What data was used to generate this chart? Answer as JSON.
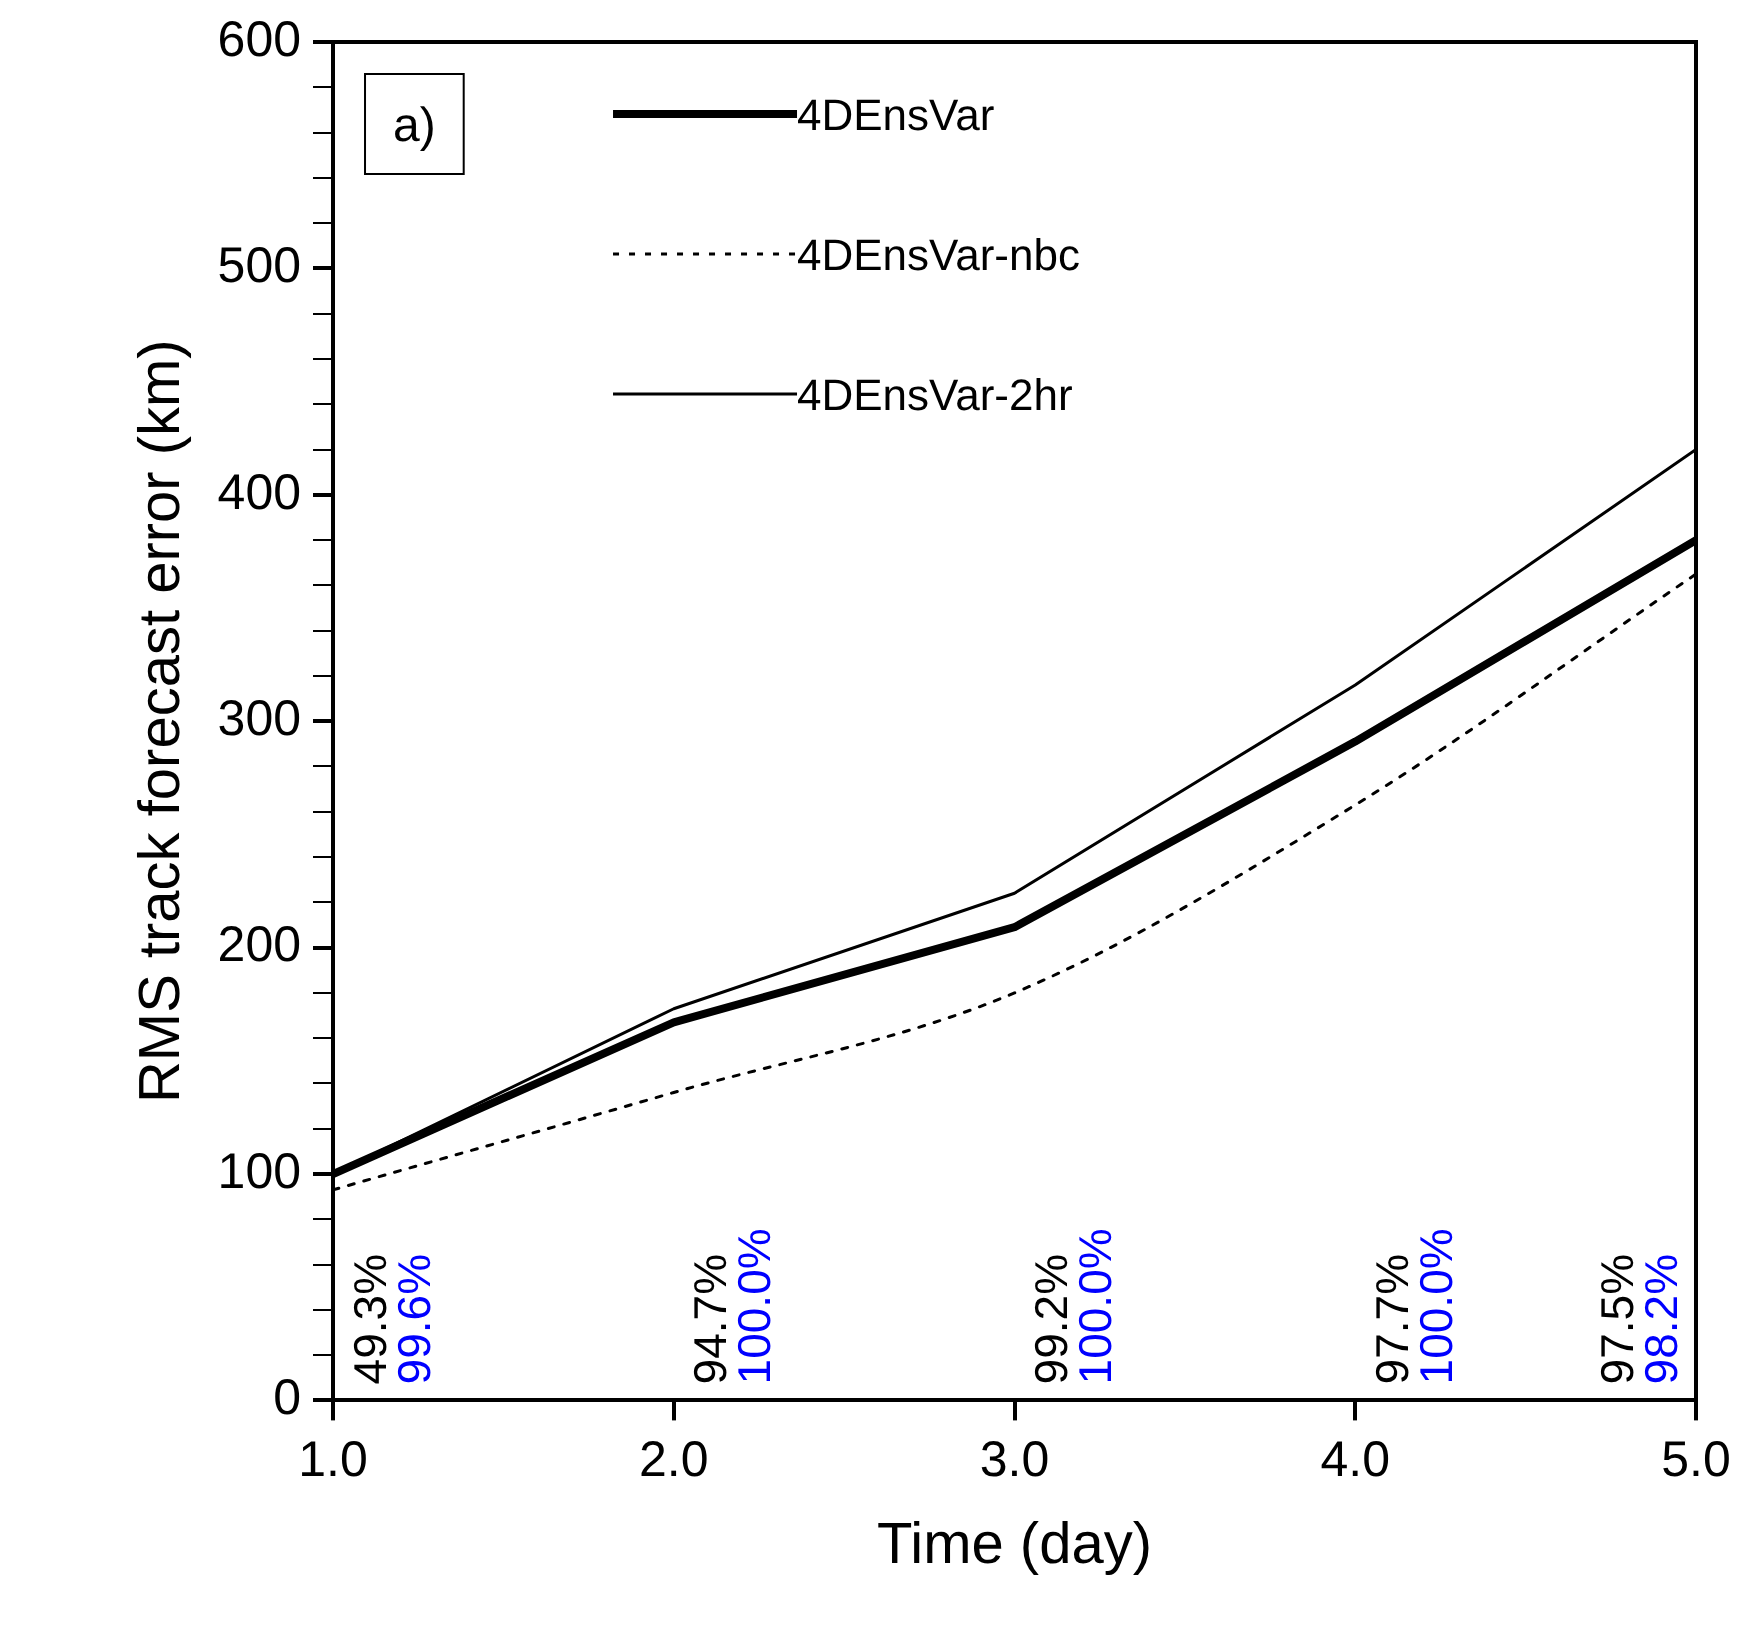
{
  "chart_data": {
    "type": "line",
    "xlabel": "Time (day)",
    "ylabel": "RMS track forecast error (km)",
    "x": [
      1,
      2,
      3,
      4,
      5
    ],
    "series": [
      {
        "name": "4DEnsVar",
        "color": "#000000",
        "values": [
          100,
          167,
          209,
          291,
          380
        ],
        "line_style": "solid"
      },
      {
        "name": "4DEnsVar-nbc",
        "color": "#000000",
        "values": [
          93,
          136,
          180,
          263,
          365
        ],
        "line_style": "dotted"
      },
      {
        "name": "4DEnsVar-2hr",
        "color": "#000000",
        "values": [
          100,
          173,
          224,
          316,
          420
        ],
        "line_style": "solid"
      }
    ],
    "xlim": [
      1,
      5
    ],
    "xticks": [
      {
        "value": 1,
        "label": "1.0"
      },
      {
        "value": 2,
        "label": "2.0"
      },
      {
        "value": 3,
        "label": "3.0"
      },
      {
        "value": 4,
        "label": "4.0"
      },
      {
        "value": 5,
        "label": "5.0"
      }
    ],
    "ylim": [
      0,
      600
    ],
    "yticks": [
      0,
      {
        "value": 20,
        "label": null
      },
      {
        "value": 40,
        "label": null
      },
      {
        "value": 60,
        "label": null
      },
      {
        "value": 80,
        "label": null
      },
      100,
      {
        "value": 120,
        "label": null
      },
      {
        "value": 140,
        "label": null
      },
      {
        "value": 160,
        "label": null
      },
      {
        "value": 180,
        "label": null
      },
      200,
      {
        "value": 220,
        "label": null
      },
      {
        "value": 240,
        "label": null
      },
      {
        "value": 260,
        "label": null
      },
      {
        "value": 280,
        "label": null
      },
      300,
      {
        "value": 320,
        "label": null
      },
      {
        "value": 340,
        "label": null
      },
      {
        "value": 360,
        "label": null
      },
      {
        "value": 380,
        "label": null
      },
      400,
      {
        "value": 420,
        "label": null
      },
      {
        "value": 440,
        "label": null
      },
      {
        "value": 460,
        "label": null
      },
      {
        "value": 480,
        "label": null
      },
      500,
      {
        "value": 520,
        "label": null
      },
      {
        "value": 540,
        "label": null
      },
      {
        "value": 560,
        "label": null
      },
      {
        "value": 580,
        "label": null
      },
      600
    ],
    "grid": false,
    "legend": "top left",
    "marker": "none",
    "annotations": [
      "a)",
      "49.3%",
      "99.6%",
      "94.7%",
      "100.0%",
      "99.2%",
      "100.0%",
      "97.7%",
      "100.0%",
      "97.5%",
      "98.2%"
    ]
  }
}
